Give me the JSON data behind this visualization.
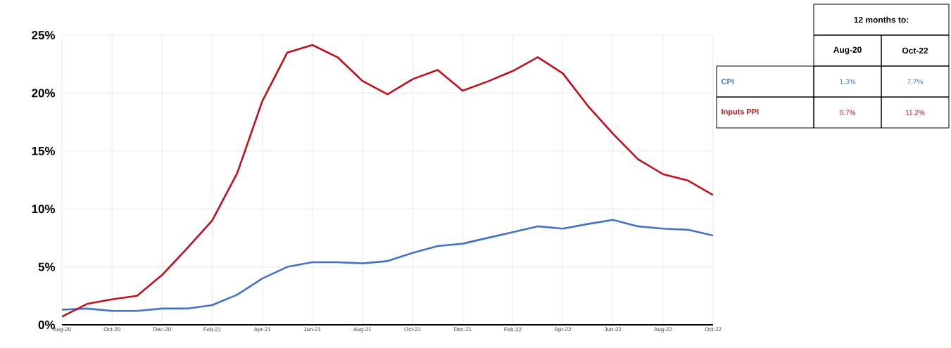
{
  "chart_data": [
    {
      "type": "line",
      "categories": [
        "Aug-20",
        null,
        "Oct-20",
        null,
        "Dec-20",
        null,
        "Feb-21",
        null,
        "Apr-21",
        null,
        "Jun-21",
        null,
        "Aug-21",
        null,
        "Oct-21",
        null,
        "Dec-21",
        null,
        "Feb-22",
        null,
        "Apr-22",
        null,
        "Jun-22",
        null,
        "Aug-22",
        null,
        "Oct-22"
      ],
      "series": [
        {
          "color": "#4472c4",
          "values": [
            1.3,
            1.4,
            1.2,
            1.2,
            1.4,
            1.4,
            1.7,
            2.6,
            4.0,
            5.0,
            5.4,
            5.4,
            5.3,
            5.5,
            6.2,
            6.8,
            7.0,
            7.5,
            8.0,
            8.5,
            8.3,
            8.7,
            9.05,
            8.5,
            8.3,
            8.2,
            7.7
          ]
        },
        {
          "color": "#c0101c",
          "values": [
            0.7,
            1.8,
            2.2,
            2.5,
            4.3,
            6.6,
            9.0,
            13.1,
            19.3,
            23.5,
            24.15,
            23.1,
            21.05,
            19.9,
            21.2,
            22.0,
            20.2,
            21.0,
            21.9,
            23.1,
            21.7,
            18.9,
            16.5,
            14.3,
            13.0,
            12.45,
            11.2
          ]
        }
      ],
      "ylim": [
        0,
        25
      ],
      "yticks": [
        {
          "value": 0,
          "label": "0%"
        },
        {
          "value": 5,
          "label": "5%"
        },
        {
          "value": 10,
          "label": "10%"
        },
        {
          "value": 15,
          "label": "15%"
        },
        {
          "value": 20,
          "label": "20%"
        },
        {
          "value": 25,
          "label": "25%"
        }
      ],
      "grid": true,
      "marker": "none",
      "line_style": "solid"
    },
    {
      "type": "other",
      "title": "12 months to:",
      "categories": [
        "Aug-20",
        "Oct-22"
      ],
      "series": [
        {
          "name": "CPI",
          "color": "#4472c4",
          "values": [
            1.3,
            7.7
          ],
          "value_labels": [
            "1.3%",
            "7.7%"
          ]
        },
        {
          "name": "Inputs PPI",
          "color": "#c0101c",
          "values": [
            0.7,
            11.2
          ],
          "value_labels": [
            "0.7%",
            "11.2%"
          ]
        }
      ]
    }
  ]
}
